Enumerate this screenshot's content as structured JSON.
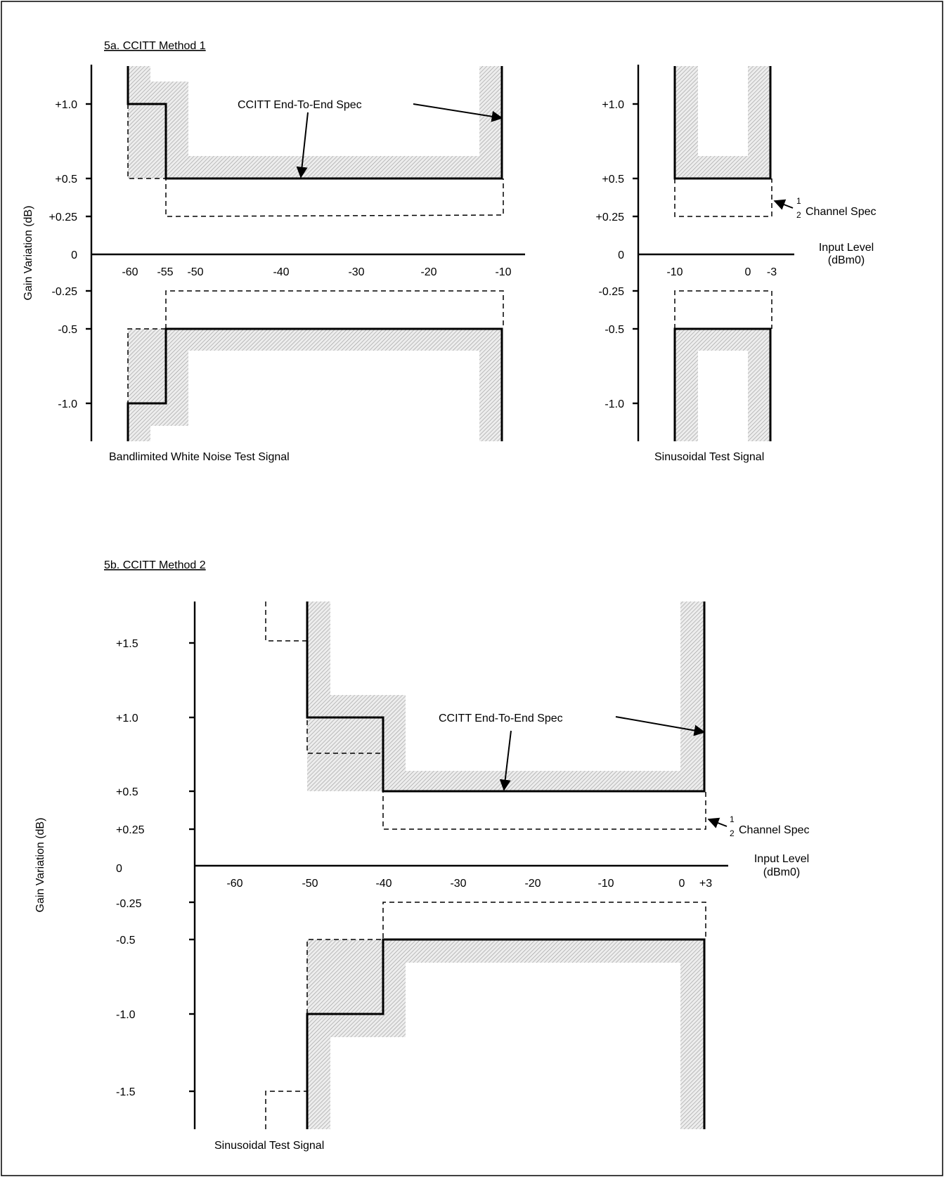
{
  "chart_data": [
    {
      "type": "line",
      "title": "5a. CCITT Method 1",
      "signal_label": "Bandlimited White Noise Test Signal",
      "ylabel": "Gain Variation (dB)",
      "y_ticks": [
        "+1.0",
        "+0.5",
        "+0.25",
        "0",
        "-0.25",
        "-0.5",
        "-1.0"
      ],
      "x_ticks": [
        "-60",
        "-55",
        "-50",
        "-40",
        "-30",
        "-20",
        "-10"
      ],
      "annotation": "CCITT End-To-End Spec",
      "xlim": [
        -65,
        -7
      ],
      "ylim": [
        -1.5,
        1.5
      ],
      "series": [
        {
          "name": "CCITT End-To-End Spec",
          "upper": [
            [
              -60,
              1.5
            ],
            [
              -60,
              1.0
            ],
            [
              -55,
              1.0
            ],
            [
              -55,
              0.5
            ],
            [
              -10,
              0.5
            ],
            [
              -10,
              1.5
            ]
          ],
          "lower": [
            [
              -60,
              -1.5
            ],
            [
              -60,
              -1.0
            ],
            [
              -55,
              -1.0
            ],
            [
              -55,
              -0.5
            ],
            [
              -10,
              -0.5
            ],
            [
              -10,
              -1.5
            ]
          ]
        },
        {
          "name": "½ Channel Spec",
          "upper": [
            [
              -60,
              1.0
            ],
            [
              -60,
              0.5
            ],
            [
              -55,
              0.5
            ],
            [
              -55,
              0.25
            ],
            [
              -10,
              0.25
            ],
            [
              -10,
              0.5
            ]
          ],
          "lower": [
            [
              -55,
              -0.5
            ],
            [
              -60,
              -0.5
            ],
            [
              -60,
              -1.0
            ],
            [
              -55,
              -0.5
            ],
            [
              -55,
              -0.25
            ],
            [
              -10,
              -0.25
            ],
            [
              -10,
              -0.5
            ]
          ]
        }
      ]
    },
    {
      "type": "line",
      "signal_label": "Sinusoidal Test Signal",
      "xlabel": "Input Level",
      "xlabel_unit": "(dBm0)",
      "y_ticks": [
        "+1.0",
        "+0.5",
        "+0.25",
        "0",
        "-0.25",
        "-0.5",
        "-1.0"
      ],
      "x_ticks": [
        "-10",
        "0",
        "-3"
      ],
      "annotation_prefix_top": "1",
      "annotation_prefix_bottom": "2",
      "annotation": "Channel Spec",
      "series": [
        {
          "name": "CCITT End-To-End Spec",
          "upper": [
            [
              -10,
              1.5
            ],
            [
              -10,
              0.5
            ],
            [
              3,
              0.5
            ],
            [
              3,
              1.5
            ]
          ],
          "lower": [
            [
              -10,
              -1.5
            ],
            [
              -10,
              -0.5
            ],
            [
              3,
              -0.5
            ],
            [
              3,
              -1.5
            ]
          ]
        },
        {
          "name": "½ Channel Spec",
          "upper": [
            [
              -10,
              0.5
            ],
            [
              -10,
              0.25
            ],
            [
              3,
              0.25
            ],
            [
              3,
              0.5
            ]
          ],
          "lower": [
            [
              -10,
              -0.5
            ],
            [
              -10,
              -0.25
            ],
            [
              3,
              -0.25
            ],
            [
              3,
              -0.5
            ]
          ]
        }
      ]
    },
    {
      "type": "line",
      "title": "5b. CCITT Method 2",
      "signal_label": "Sinusoidal Test Signal",
      "ylabel": "Gain Variation (dB)",
      "xlabel": "Input Level",
      "xlabel_unit": "(dBm0)",
      "y_ticks": [
        "+1.5",
        "+1.0",
        "+0.5",
        "+0.25",
        "0",
        "-0.25",
        "-0.5",
        "-1.0",
        "-1.5"
      ],
      "x_ticks": [
        "-60",
        "-50",
        "-40",
        "-30",
        "-20",
        "-10",
        "0",
        "+3"
      ],
      "annotation": "CCITT End-To-End Spec",
      "annotation2_prefix_top": "1",
      "annotation2_prefix_bottom": "2",
      "annotation2": "Channel Spec",
      "xlim": [
        -65,
        5
      ],
      "ylim": [
        -1.75,
        1.75
      ],
      "series": [
        {
          "name": "CCITT End-To-End Spec",
          "upper": [
            [
              -50,
              1.75
            ],
            [
              -50,
              1.0
            ],
            [
              -40,
              1.0
            ],
            [
              -40,
              0.5
            ],
            [
              3,
              0.5
            ],
            [
              3,
              1.75
            ]
          ],
          "lower": [
            [
              -50,
              -1.75
            ],
            [
              -50,
              -1.0
            ],
            [
              -40,
              -1.0
            ],
            [
              -40,
              -0.5
            ],
            [
              3,
              -0.5
            ],
            [
              3,
              -1.75
            ]
          ]
        },
        {
          "name": "½ Channel Spec",
          "upper": [
            [
              -55.5,
              1.75
            ],
            [
              -55.5,
              1.5
            ],
            [
              -50,
              1.5
            ],
            [
              -50,
              0.5
            ],
            [
              -40,
              0.5
            ],
            [
              -40,
              0.25
            ],
            [
              3,
              0.25
            ],
            [
              3,
              0.5
            ]
          ],
          "lower": [
            [
              -55.5,
              -1.75
            ],
            [
              -55.5,
              -1.5
            ],
            [
              -50,
              -1.5
            ],
            [
              -50,
              -0.5
            ],
            [
              -40,
              -0.5
            ],
            [
              -40,
              -0.25
            ],
            [
              3,
              -0.25
            ],
            [
              3,
              -0.5
            ]
          ]
        }
      ]
    }
  ]
}
